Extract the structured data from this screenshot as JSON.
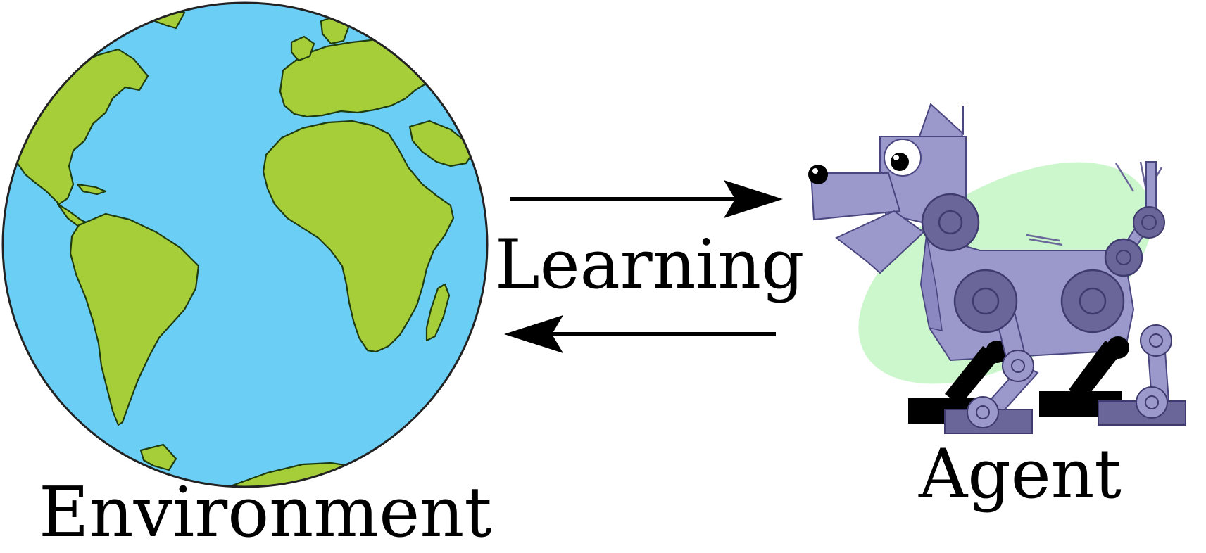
{
  "labels": {
    "environment": "Environment",
    "learning": "Learning",
    "agent": "Agent"
  },
  "icons": {
    "environment": "globe-icon",
    "agent": "robot-dog-icon",
    "forward_arrow": "arrow-right-icon",
    "backward_arrow": "arrow-left-icon"
  },
  "colors": {
    "ocean": "#6BCEF5",
    "land": "#A6CE39",
    "robot_body": "#9B98CB",
    "robot_joint": "#6A6699",
    "robot_foot": "#000000",
    "halo": "#CCF7CC"
  }
}
